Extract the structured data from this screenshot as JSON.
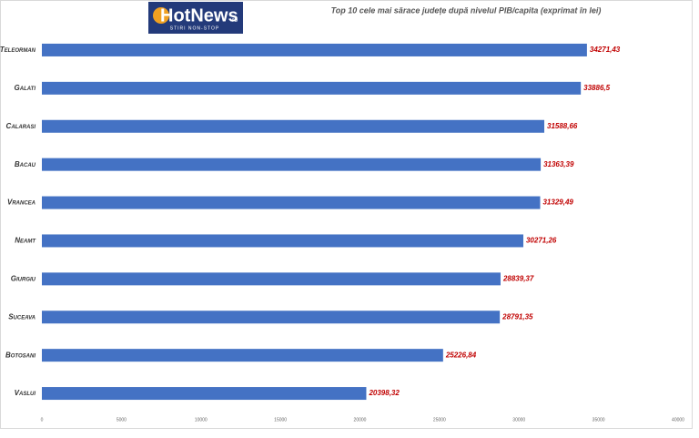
{
  "logo": {
    "text": "HotNews",
    "suffix": ".ro",
    "tagline": "STIRI NON-STOP"
  },
  "chart_data": {
    "type": "hbar",
    "title": "Top 10 cele mai sărace județe după nivelul PIB/capita (exprimat în lei)",
    "categories": [
      "Teleorman",
      "Galati",
      "Calarasi",
      "Bacau",
      "Vrancea",
      "Neamt",
      "Giurgiu",
      "Suceava",
      "Botosani",
      "Vaslui"
    ],
    "values": [
      34271.43,
      33886.5,
      31588.66,
      31363.39,
      31329.49,
      30271.26,
      28839.37,
      28791.35,
      25226.84,
      20398.32
    ],
    "value_labels": [
      "34271,43",
      "33886,5",
      "31588,66",
      "31363,39",
      "31329,49",
      "30271,26",
      "28839,37",
      "28791,35",
      "25226,84",
      "20398,32"
    ],
    "color": "#4472c4",
    "xlim": [
      0,
      40000
    ],
    "xticks": [
      0,
      5000,
      10000,
      15000,
      20000,
      25000,
      30000,
      35000,
      40000
    ],
    "grid": false
  }
}
